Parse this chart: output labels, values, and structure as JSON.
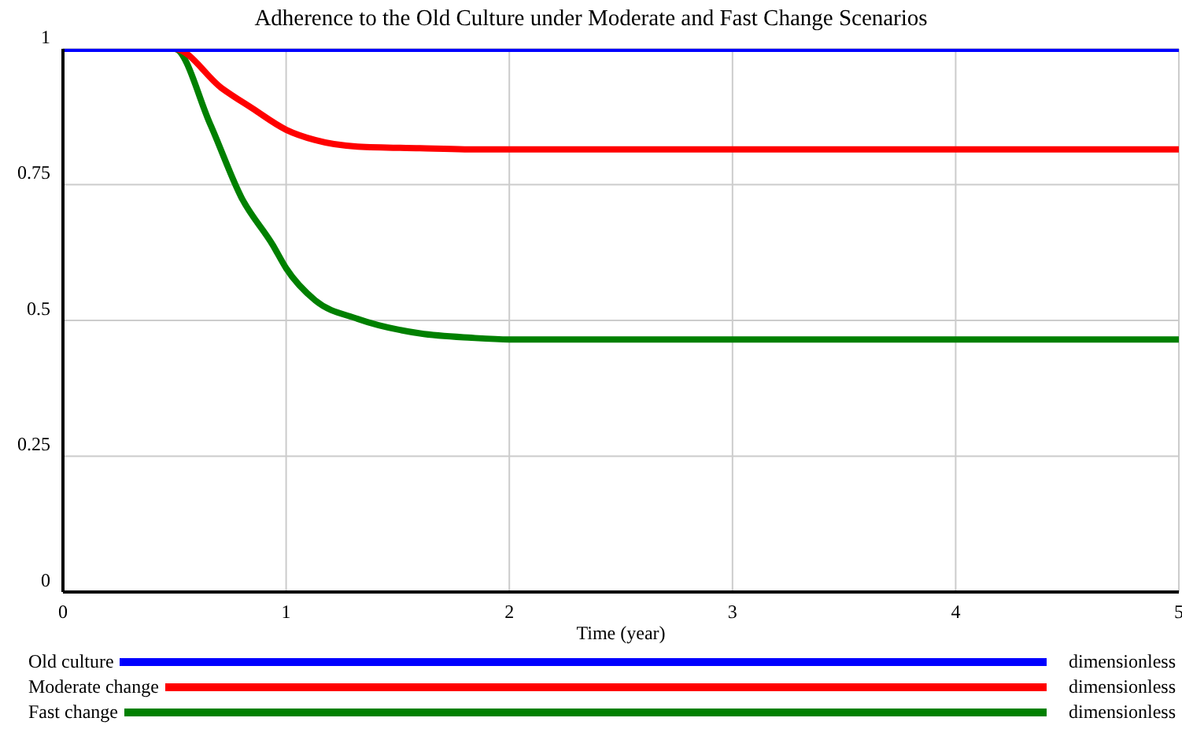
{
  "chart_data": {
    "type": "line",
    "title": "Adherence to the Old Culture under Moderate and Fast Change Scenarios",
    "xlabel": "Time (year)",
    "series": [
      {
        "name": "Old culture",
        "color": "#0000ff",
        "x": [
          0,
          5
        ],
        "values": [
          1,
          1
        ]
      },
      {
        "name": "Moderate change",
        "color": "#ff0000",
        "x": [
          0,
          0.5,
          0.71,
          0.85,
          1,
          1.13,
          1.32,
          1.6,
          1.8,
          2,
          5
        ],
        "values": [
          1,
          1,
          0.928,
          0.89,
          0.851,
          0.832,
          0.82,
          0.817,
          0.815,
          0.815,
          0.815
        ]
      },
      {
        "name": "Fast change",
        "color": "#008000",
        "x": [
          0,
          0.5,
          0.66,
          0.8,
          0.94,
          1,
          1.13,
          1.32,
          1.6,
          1.83,
          2,
          5
        ],
        "values": [
          1,
          1,
          0.861,
          0.726,
          0.639,
          0.596,
          0.537,
          0.503,
          0.476,
          0.468,
          0.465,
          0.465
        ]
      }
    ],
    "annotations": [
      "dimensionless",
      "dimensionless",
      "dimensionless"
    ],
    "xlim": [
      0,
      5
    ],
    "xticks": [
      0,
      1,
      2,
      3,
      4,
      5
    ],
    "ylim": [
      0,
      1
    ],
    "yticks": [
      0,
      0.25,
      0.5,
      0.75,
      1
    ],
    "grid": true,
    "legend": "bottom",
    "marker": "none",
    "line_style": "solid"
  }
}
